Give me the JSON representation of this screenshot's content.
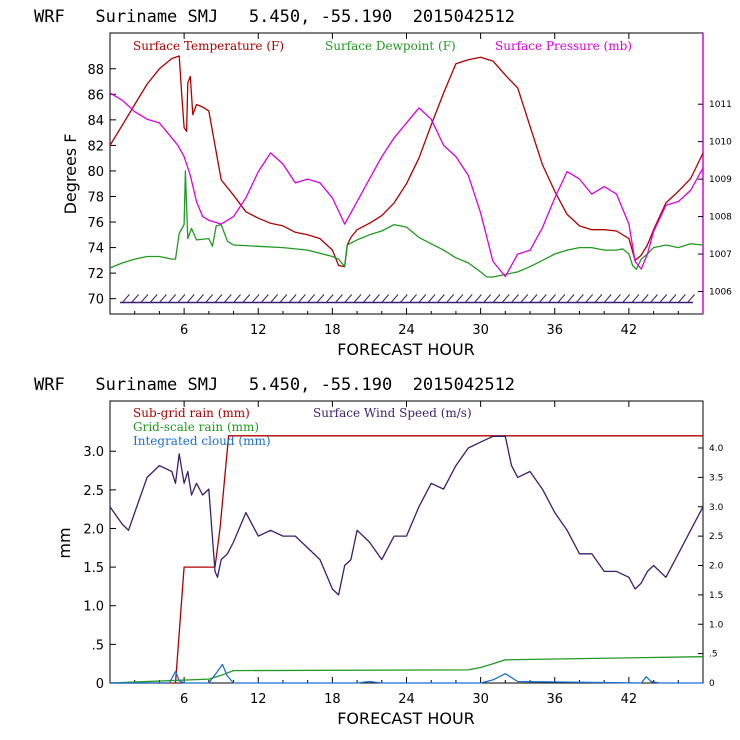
{
  "chart_data": [
    {
      "type": "line",
      "title": "WRF   Suriname SMJ   5.450, -55.190  2015042512",
      "xlabel": "FORECAST HOUR",
      "ylabel": "Degrees F",
      "xlim": [
        0,
        48
      ],
      "ylim": [
        68.8,
        90.8
      ],
      "y2lim": [
        1005.4,
        1012.9
      ],
      "xticks": [
        6,
        12,
        18,
        24,
        30,
        36,
        42
      ],
      "yticks": [
        70,
        72,
        74,
        76,
        78,
        80,
        82,
        84,
        86,
        88
      ],
      "y2ticks": [
        1006,
        1007,
        1008,
        1009,
        1010,
        1011
      ],
      "series": [
        {
          "name": "Surface Temperature (F)",
          "color": "#b00000",
          "axis": "left",
          "x": [
            0,
            1,
            2,
            3,
            4,
            5,
            5.6,
            5.8,
            6,
            6.2,
            6.3,
            6.5,
            6.7,
            7,
            7.5,
            8,
            9,
            10,
            11,
            12,
            13,
            14,
            15,
            16,
            17,
            18,
            18.5,
            19,
            19.2,
            19.5,
            20,
            21,
            22,
            23,
            24,
            25,
            26,
            27,
            28,
            29,
            30,
            31,
            32,
            33,
            34,
            35,
            36,
            37,
            38,
            39,
            40,
            41,
            42,
            42.5,
            43,
            43.5,
            44,
            45,
            46,
            47,
            48
          ],
          "y": [
            82,
            83.6,
            85.2,
            86.8,
            88,
            88.8,
            89,
            86,
            83.4,
            83.1,
            86.9,
            87.4,
            84.4,
            85.2,
            85,
            84.7,
            79.3,
            78.1,
            76.8,
            76.3,
            75.9,
            75.7,
            75.2,
            75,
            74.7,
            73.8,
            72.6,
            72.5,
            74.2,
            74.8,
            75.4,
            75.9,
            76.5,
            77.5,
            79,
            81,
            83.6,
            86.1,
            88.4,
            88.7,
            88.9,
            88.6,
            87.5,
            86.5,
            83.5,
            80.5,
            78.4,
            76.6,
            75.7,
            75.4,
            75.4,
            75.3,
            74.7,
            73,
            73.4,
            74.2,
            75.4,
            77.5,
            78.4,
            79.4,
            81.4
          ]
        },
        {
          "name": "Surface Dewpoint (F)",
          "color": "#229922",
          "axis": "left",
          "x": [
            0,
            1,
            2,
            3,
            4,
            5,
            5.3,
            5.6,
            6,
            6.1,
            6.2,
            6.3,
            6.6,
            7,
            8,
            8.3,
            8.6,
            9,
            9.5,
            10,
            12,
            14,
            16,
            18,
            18.5,
            19,
            19.2,
            20,
            21,
            22,
            23,
            24,
            25,
            26,
            27,
            28,
            29,
            30,
            30.5,
            31,
            32,
            33,
            34,
            35,
            36,
            37,
            38,
            39,
            40,
            41,
            41.5,
            42,
            42.3,
            42.6,
            43,
            43.5,
            44,
            45,
            46,
            47,
            48
          ],
          "y": [
            72.4,
            72.8,
            73.1,
            73.3,
            73.3,
            73.1,
            73.1,
            75.1,
            75.8,
            80,
            77.2,
            74.7,
            75.5,
            74.6,
            74.7,
            74.1,
            75.7,
            75.8,
            74.5,
            74.2,
            74.1,
            74,
            73.8,
            73.3,
            73.1,
            72.5,
            74.2,
            74.6,
            75,
            75.3,
            75.8,
            75.6,
            74.8,
            74.3,
            73.8,
            73.2,
            72.8,
            72.1,
            71.7,
            71.7,
            71.9,
            72.1,
            72.5,
            73,
            73.5,
            73.8,
            74,
            74,
            73.8,
            73.8,
            73.9,
            73.5,
            72.6,
            72.3,
            73.1,
            73.5,
            74,
            74.2,
            74,
            74.3,
            74.2
          ]
        },
        {
          "name": "Surface Pressure (mb)",
          "color": "#dd00dd",
          "axis": "right",
          "x": [
            0,
            1,
            2,
            3,
            4,
            5,
            5.5,
            6,
            6.5,
            7,
            7.5,
            8,
            9,
            10,
            11,
            12,
            13,
            14,
            15,
            16,
            17,
            18,
            19,
            20,
            21,
            22,
            23,
            24,
            25,
            26,
            27,
            28,
            29,
            30,
            31,
            32,
            33,
            34,
            35,
            36,
            37,
            38,
            39,
            40,
            41,
            42,
            42.5,
            43,
            43.5,
            44,
            45,
            46,
            47,
            48
          ],
          "y": [
            1011.3,
            1011.1,
            1010.8,
            1010.6,
            1010.5,
            1010.1,
            1009.9,
            1009.6,
            1009.1,
            1008.4,
            1008.0,
            1007.9,
            1007.8,
            1008.0,
            1008.5,
            1009.2,
            1009.7,
            1009.4,
            1008.9,
            1009.0,
            1008.9,
            1008.5,
            1007.8,
            1008.4,
            1009.0,
            1009.6,
            1010.1,
            1010.5,
            1010.9,
            1010.6,
            1009.9,
            1009.6,
            1009.1,
            1008.1,
            1006.8,
            1006.4,
            1007.0,
            1007.1,
            1007.7,
            1008.5,
            1009.2,
            1009.0,
            1008.6,
            1008.8,
            1008.6,
            1007.8,
            1006.8,
            1006.6,
            1007.0,
            1007.6,
            1008.3,
            1008.4,
            1008.7,
            1009.3
          ]
        },
        {
          "name": "",
          "color": "#3a1f6e",
          "axis": "left",
          "style": "wind-barbs",
          "x": [
            0,
            48
          ],
          "y": [
            69.7,
            69.7
          ]
        }
      ],
      "legend": "top"
    },
    {
      "type": "line",
      "title": "WRF   Suriname SMJ   5.450, -55.190  2015042512",
      "xlabel": "FORECAST HOUR",
      "ylabel": "mm",
      "xlim": [
        0,
        48
      ],
      "ylim": [
        0,
        3.65
      ],
      "y2lim": [
        0,
        4.8
      ],
      "xticks": [
        6,
        12,
        18,
        24,
        30,
        36,
        42
      ],
      "yticks": [
        "0",
        ".5",
        "1.0",
        "1.5",
        "2.0",
        "2.5",
        "3.0"
      ],
      "ytick_values": [
        0,
        0.5,
        1.0,
        1.5,
        2.0,
        2.5,
        3.0
      ],
      "y2ticks": [
        "0",
        ".5",
        "1.0",
        "1.5",
        "2.0",
        "2.5",
        "3.0",
        "3.5",
        "4.0"
      ],
      "y2tick_values": [
        0,
        0.5,
        1.0,
        1.5,
        2.0,
        2.5,
        3.0,
        3.5,
        4.0
      ],
      "series": [
        {
          "name": "Sub-grid rain (mm)",
          "color": "#b00000",
          "axis": "left",
          "x": [
            0,
            5.3,
            6,
            8.5,
            8.9,
            9.6,
            48
          ],
          "y": [
            0,
            0,
            1.5,
            1.5,
            2.0,
            3.2,
            3.2
          ]
        },
        {
          "name": "Grid-scale rain (mm)",
          "color": "#229922",
          "axis": "left",
          "x": [
            0,
            8,
            9,
            10,
            29,
            30,
            31,
            32,
            48
          ],
          "y": [
            0,
            0.05,
            0.1,
            0.16,
            0.17,
            0.2,
            0.25,
            0.3,
            0.34
          ]
        },
        {
          "name": "Integrated cloud (mm)",
          "color": "#1a6fd0",
          "axis": "left",
          "x": [
            0,
            4.8,
            5.3,
            5.6,
            6,
            8,
            8.7,
            9.1,
            9.5,
            10,
            20,
            21,
            22,
            30,
            31,
            32,
            33,
            43,
            43.4,
            43.8,
            44.5,
            48
          ],
          "y": [
            0,
            0,
            0.15,
            0.03,
            0,
            0,
            0.15,
            0.24,
            0.09,
            0,
            0,
            0.02,
            0,
            0,
            0.04,
            0.12,
            0.02,
            0,
            0.08,
            0.02,
            0,
            0
          ]
        },
        {
          "name": "Surface Wind Speed (m/s)",
          "color": "#3a1f6e",
          "axis": "right",
          "x": [
            0,
            1,
            1.5,
            2,
            3,
            4,
            5,
            5.3,
            5.6,
            6,
            6.3,
            6.6,
            7,
            7.5,
            8,
            8.5,
            8.7,
            9,
            9.5,
            10,
            11,
            12,
            13,
            14,
            15,
            16,
            17,
            18,
            18.5,
            19,
            19.5,
            20,
            21,
            22,
            23,
            24,
            25,
            26,
            27,
            28,
            29,
            30,
            31,
            32,
            32.5,
            33,
            34,
            35,
            36,
            37,
            38,
            39,
            40,
            41,
            42,
            42.5,
            43,
            43.5,
            44,
            45,
            46,
            47,
            48
          ],
          "y": [
            3.0,
            2.7,
            2.6,
            2.9,
            3.5,
            3.7,
            3.6,
            3.4,
            3.9,
            3.4,
            3.6,
            3.2,
            3.4,
            3.2,
            3.3,
            1.9,
            1.8,
            2.1,
            2.2,
            2.4,
            2.9,
            2.5,
            2.6,
            2.5,
            2.5,
            2.3,
            2.1,
            1.6,
            1.5,
            2.0,
            2.1,
            2.6,
            2.4,
            2.1,
            2.5,
            2.5,
            3.0,
            3.4,
            3.3,
            3.7,
            4.0,
            4.1,
            4.2,
            4.2,
            3.7,
            3.5,
            3.6,
            3.3,
            2.9,
            2.6,
            2.2,
            2.2,
            1.9,
            1.9,
            1.8,
            1.6,
            1.7,
            1.9,
            2.0,
            1.8,
            2.2,
            2.6,
            3.0
          ]
        }
      ],
      "legend": "top-left"
    }
  ]
}
